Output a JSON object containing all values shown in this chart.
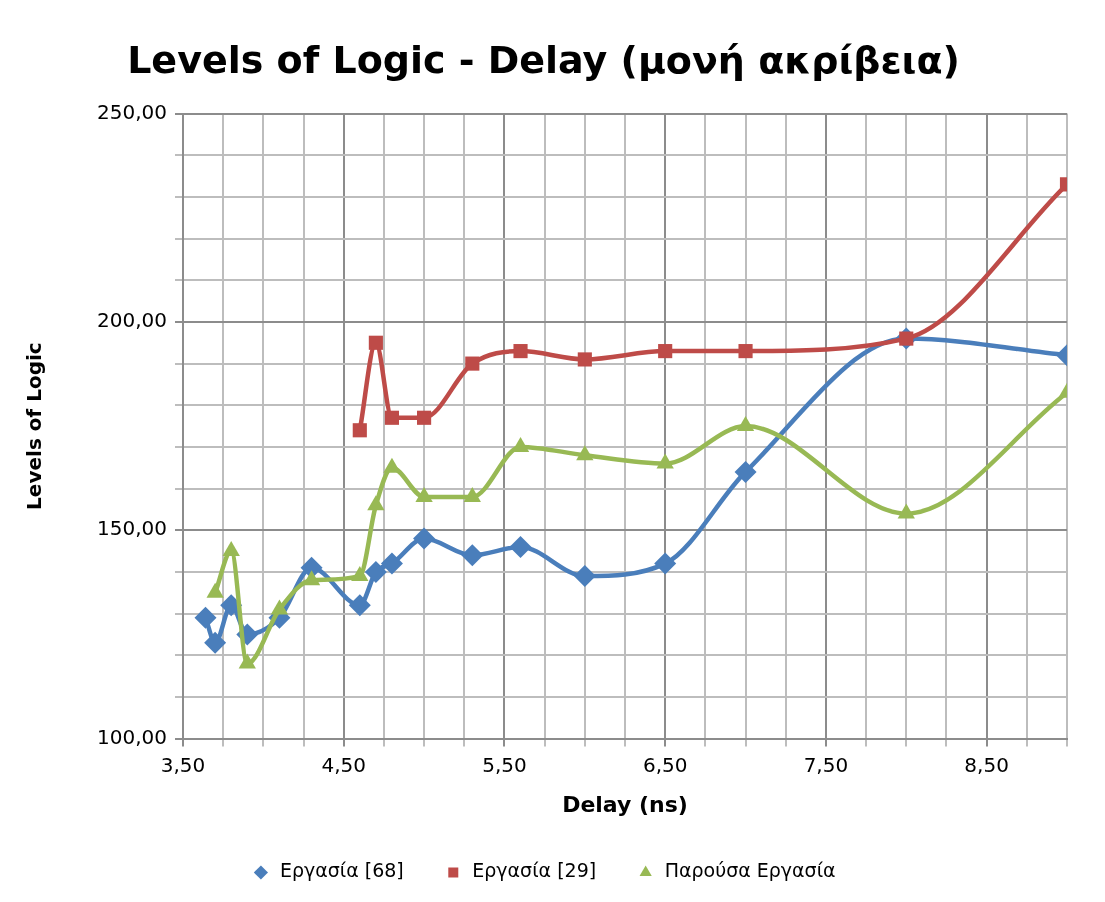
{
  "chart_data": {
    "type": "line",
    "title": "Levels of Logic - Delay (μονή ακρίβεια)",
    "xlabel": "Delay (ns)",
    "ylabel": "Levels of Logic",
    "xlim": [
      3.5,
      9.0
    ],
    "xticks": [
      {
        "value": 3.5,
        "label": "3,50"
      },
      {
        "value": 3.75,
        "label": null
      },
      {
        "value": 4.0,
        "label": null
      },
      {
        "value": 4.25,
        "label": null
      },
      {
        "value": 4.5,
        "label": "4,50"
      },
      {
        "value": 4.75,
        "label": null
      },
      {
        "value": 5.0,
        "label": null
      },
      {
        "value": 5.25,
        "label": null
      },
      {
        "value": 5.5,
        "label": "5,50"
      },
      {
        "value": 5.75,
        "label": null
      },
      {
        "value": 6.0,
        "label": null
      },
      {
        "value": 6.25,
        "label": null
      },
      {
        "value": 6.5,
        "label": "6,50"
      },
      {
        "value": 6.75,
        "label": null
      },
      {
        "value": 7.0,
        "label": null
      },
      {
        "value": 7.25,
        "label": null
      },
      {
        "value": 7.5,
        "label": "7,50"
      },
      {
        "value": 7.75,
        "label": null
      },
      {
        "value": 8.0,
        "label": null
      },
      {
        "value": 8.25,
        "label": null
      },
      {
        "value": 8.5,
        "label": "8,50"
      },
      {
        "value": 8.75,
        "label": null
      },
      {
        "value": 9.0,
        "label": null
      }
    ],
    "ylim": [
      100,
      250
    ],
    "yticks": [
      {
        "value": 100,
        "label": "100,00"
      },
      {
        "value": 110,
        "label": null
      },
      {
        "value": 120,
        "label": null
      },
      {
        "value": 130,
        "label": null
      },
      {
        "value": 140,
        "label": null
      },
      {
        "value": 150,
        "label": "150,00"
      },
      {
        "value": 160,
        "label": null
      },
      {
        "value": 170,
        "label": null
      },
      {
        "value": 180,
        "label": null
      },
      {
        "value": 190,
        "label": null
      },
      {
        "value": 200,
        "label": "200,00"
      },
      {
        "value": 210,
        "label": null
      },
      {
        "value": 220,
        "label": null
      },
      {
        "value": 230,
        "label": null
      },
      {
        "value": 240,
        "label": null
      },
      {
        "value": 250,
        "label": "250,00"
      }
    ],
    "grid": true,
    "legend": "bottom",
    "line_style": "solid",
    "series": [
      {
        "name": "Εργασία [68]",
        "color": "#4a7ebb",
        "marker": "diamond",
        "x": [
          3.64,
          3.7,
          3.8,
          3.9,
          4.1,
          4.3,
          4.6,
          4.7,
          4.8,
          5.0,
          5.3,
          5.6,
          6.0,
          6.5,
          7.0,
          8.0,
          9.0
        ],
        "values": [
          129,
          123,
          132,
          125,
          129,
          141,
          132,
          140,
          142,
          148,
          144,
          146,
          139,
          142,
          164,
          196,
          192
        ]
      },
      {
        "name": "Εργασία [29]",
        "color": "#be4b48",
        "marker": "square",
        "x": [
          4.6,
          4.7,
          4.8,
          5.0,
          5.3,
          5.6,
          6.0,
          6.5,
          7.0,
          8.0,
          9.0
        ],
        "values": [
          174,
          195,
          177,
          177,
          190,
          193,
          191,
          193,
          193,
          196,
          233
        ]
      },
      {
        "name": "Παρούσα Εργασία",
        "color": "#98b954",
        "marker": "triangle",
        "x": [
          3.7,
          3.8,
          3.9,
          4.1,
          4.3,
          4.6,
          4.7,
          4.8,
          5.0,
          5.3,
          5.6,
          6.0,
          6.5,
          7.0,
          8.0,
          9.0
        ],
        "values": [
          135,
          145,
          118,
          131,
          138,
          139,
          156,
          165,
          158,
          158,
          170,
          168,
          166,
          175,
          154,
          183
        ]
      }
    ]
  }
}
